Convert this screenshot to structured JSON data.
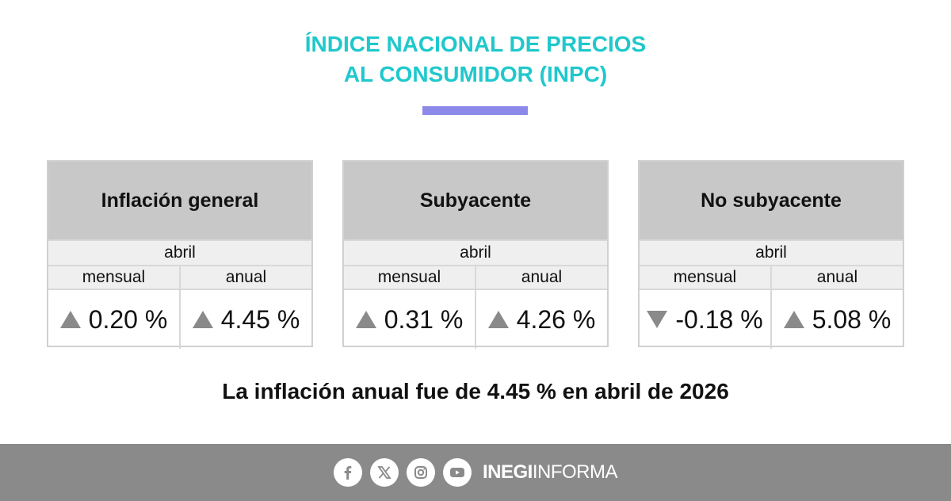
{
  "header": {
    "title_line1": "ÍNDICE NACIONAL DE PRECIOS",
    "title_line2": "AL CONSUMIDOR (INPC)",
    "title_color": "#1fc8cc",
    "accent_bar_color": "#8c89e8"
  },
  "cards": [
    {
      "title": "Inflación general",
      "month": "abril",
      "monthly_label": "mensual",
      "annual_label": "anual",
      "monthly_value": "0.20 %",
      "monthly_trend": "up-triangle-icon",
      "annual_value": "4.45 %",
      "annual_trend": "up-triangle-icon"
    },
    {
      "title": "Subyacente",
      "month": "abril",
      "monthly_label": "mensual",
      "annual_label": "anual",
      "monthly_value": "0.31 %",
      "monthly_trend": "up-triangle-icon",
      "annual_value": "4.26 %",
      "annual_trend": "up-triangle-icon"
    },
    {
      "title": "No subyacente",
      "month": "abril",
      "monthly_label": "mensual",
      "annual_label": "anual",
      "monthly_value": "-0.18 %",
      "monthly_trend": "down-triangle-icon",
      "annual_value": "5.08 %",
      "annual_trend": "up-triangle-icon"
    }
  ],
  "summary": "La inflación anual fue de 4.45 % en abril de 2026",
  "footer": {
    "icons": [
      "facebook-icon",
      "x-icon",
      "instagram-icon",
      "youtube-icon"
    ],
    "brand_bold": "INEGI",
    "brand_regular": "INFORMA",
    "background_color": "#8a8a8a"
  }
}
